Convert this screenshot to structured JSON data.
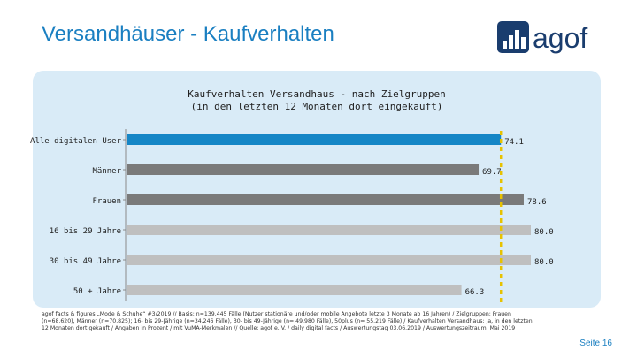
{
  "header": {
    "title": "Versandhäuser - Kaufverhalten",
    "logo_text": "agof"
  },
  "colors": {
    "accent": "#1a7fc1",
    "panel_bg": "#d9ebf7",
    "bar_primary": "#1586c6",
    "bar_dark": "#7a7a7a",
    "bar_light": "#bfbfbf",
    "reference_line": "#e7c200"
  },
  "chart_data": {
    "type": "bar",
    "orientation": "horizontal",
    "title": "Kaufverhalten Versandhaus - nach Zielgruppen",
    "subtitle": "(in den letzten 12 Monaten dort eingekauft)",
    "categories": [
      "Alle digitalen User",
      "Männer",
      "Frauen",
      "16 bis 29 Jahre",
      "30 bis 49 Jahre",
      "50 + Jahre"
    ],
    "values": [
      74.1,
      69.7,
      78.6,
      80.0,
      80.0,
      66.3
    ],
    "value_labels": [
      "74.1",
      "69.7",
      "78.6",
      "80.0",
      "80.0",
      "66.3"
    ],
    "bar_colors": [
      "#1586c6",
      "#7a7a7a",
      "#7a7a7a",
      "#bfbfbf",
      "#bfbfbf",
      "#bfbfbf"
    ],
    "reference_value": 74.1,
    "reference_line_style": "dashed",
    "xlim": [
      0,
      80
    ],
    "grid": false
  },
  "footnote": "agof facts & figures „Mode & Schuhe“ #3/2019 // Basis: n=139.445 Fälle (Nutzer stationäre und/oder mobile Angebote letzte 3 Monate ab 16 Jahren) / Zielgruppen: Frauen (n=68.620), Männer (n=70.825); 16- bis 29-Jährige (n=34.246 Fälle), 30- bis 49-Jährige (n= 49.980 Fälle), 50plus (n= 55.219 Fälle) / Kaufverhalten Versandhaus: Ja, in den letzten 12 Monaten dort gekauft / Angaben in Prozent / mit VuMA-Merkmalen // Quelle: agof e. V. / daily digital facts / Auswertungstag 03.06.2019 / Auswertungszeitraum: Mai 2019",
  "page": {
    "label": "Seite 16"
  }
}
